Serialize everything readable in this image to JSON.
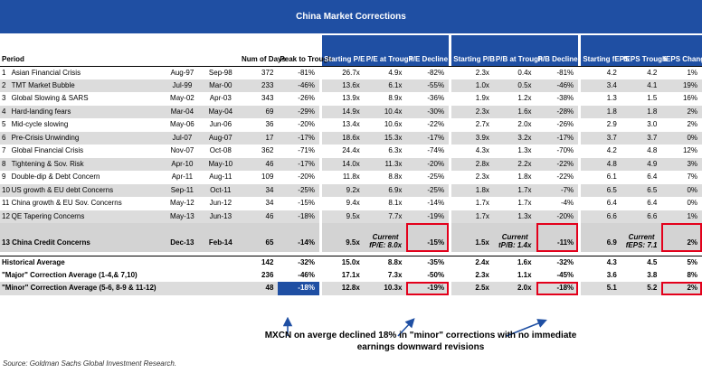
{
  "title": "China Market Corrections",
  "headers": {
    "period": "Period",
    "days": "Num of Days",
    "peak": "Peak to Trough",
    "spe": "Starting P/E",
    "pet": "P/E at Trough",
    "ped": "P/E Decline",
    "spb": "Starting P/B",
    "pbt": "P/B at Trough",
    "pbd": "P/B Decline",
    "seps": "Starting fEPS",
    "teps": "fEPS Trough",
    "ceps": "fEPS Changes"
  },
  "rows": [
    {
      "n": "1",
      "name": "Asian Financial Crisis",
      "s": "Aug-97",
      "e": "Sep-98",
      "days": "372",
      "peak": "-81%",
      "spe": "26.7x",
      "pet": "4.9x",
      "ped": "-82%",
      "spb": "2.3x",
      "pbt": "0.4x",
      "pbd": "-81%",
      "seps": "4.2",
      "teps": "4.2",
      "ceps": "1%"
    },
    {
      "n": "2",
      "name": "TMT Market Bubble",
      "s": "Jul-99",
      "e": "Mar-00",
      "days": "233",
      "peak": "-46%",
      "spe": "13.6x",
      "pet": "6.1x",
      "ped": "-55%",
      "spb": "1.0x",
      "pbt": "0.5x",
      "pbd": "-46%",
      "seps": "3.4",
      "teps": "4.1",
      "ceps": "19%"
    },
    {
      "n": "3",
      "name": "Global Slowing & SARS",
      "s": "May-02",
      "e": "Apr-03",
      "days": "343",
      "peak": "-26%",
      "spe": "13.9x",
      "pet": "8.9x",
      "ped": "-36%",
      "spb": "1.9x",
      "pbt": "1.2x",
      "pbd": "-38%",
      "seps": "1.3",
      "teps": "1.5",
      "ceps": "16%"
    },
    {
      "n": "4",
      "name": "Hard-landing fears",
      "s": "Mar-04",
      "e": "May-04",
      "days": "69",
      "peak": "-29%",
      "spe": "14.9x",
      "pet": "10.4x",
      "ped": "-30%",
      "spb": "2.3x",
      "pbt": "1.6x",
      "pbd": "-28%",
      "seps": "1.8",
      "teps": "1.8",
      "ceps": "2%"
    },
    {
      "n": "5",
      "name": "Mid-cycle slowing",
      "s": "May-06",
      "e": "Jun-06",
      "days": "36",
      "peak": "-20%",
      "spe": "13.4x",
      "pet": "10.6x",
      "ped": "-22%",
      "spb": "2.7x",
      "pbt": "2.0x",
      "pbd": "-26%",
      "seps": "2.9",
      "teps": "3.0",
      "ceps": "2%"
    },
    {
      "n": "6",
      "name": "Pre-Crisis Unwinding",
      "s": "Jul-07",
      "e": "Aug-07",
      "days": "17",
      "peak": "-17%",
      "spe": "18.6x",
      "pet": "15.3x",
      "ped": "-17%",
      "spb": "3.9x",
      "pbt": "3.2x",
      "pbd": "-17%",
      "seps": "3.7",
      "teps": "3.7",
      "ceps": "0%"
    },
    {
      "n": "7",
      "name": "Global Financial Crisis",
      "s": "Nov-07",
      "e": "Oct-08",
      "days": "362",
      "peak": "-71%",
      "spe": "24.4x",
      "pet": "6.3x",
      "ped": "-74%",
      "spb": "4.3x",
      "pbt": "1.3x",
      "pbd": "-70%",
      "seps": "4.2",
      "teps": "4.8",
      "ceps": "12%"
    },
    {
      "n": "8",
      "name": "Tightening & Sov. Risk",
      "s": "Apr-10",
      "e": "May-10",
      "days": "46",
      "peak": "-17%",
      "spe": "14.0x",
      "pet": "11.3x",
      "ped": "-20%",
      "spb": "2.8x",
      "pbt": "2.2x",
      "pbd": "-22%",
      "seps": "4.8",
      "teps": "4.9",
      "ceps": "3%"
    },
    {
      "n": "9",
      "name": "Double-dip & Debt Concern",
      "s": "Apr-11",
      "e": "Aug-11",
      "days": "109",
      "peak": "-20%",
      "spe": "11.8x",
      "pet": "8.8x",
      "ped": "-25%",
      "spb": "2.3x",
      "pbt": "1.8x",
      "pbd": "-22%",
      "seps": "6.1",
      "teps": "6.4",
      "ceps": "7%"
    },
    {
      "n": "10",
      "name": "US growth & EU debt Concerns",
      "s": "Sep-11",
      "e": "Oct-11",
      "days": "34",
      "peak": "-25%",
      "spe": "9.2x",
      "pet": "6.9x",
      "ped": "-25%",
      "spb": "1.8x",
      "pbt": "1.7x",
      "pbd": "-7%",
      "seps": "6.5",
      "teps": "6.5",
      "ceps": "0%"
    },
    {
      "n": "11",
      "name": "China growth & EU Sov. Concerns",
      "s": "May-12",
      "e": "Jun-12",
      "days": "34",
      "peak": "-15%",
      "spe": "9.4x",
      "pet": "8.1x",
      "ped": "-14%",
      "spb": "1.7x",
      "pbt": "1.7x",
      "pbd": "-4%",
      "seps": "6.4",
      "teps": "6.4",
      "ceps": "0%"
    },
    {
      "n": "12",
      "name": "QE Tapering Concerns",
      "s": "May-13",
      "e": "Jun-13",
      "days": "46",
      "peak": "-18%",
      "spe": "9.5x",
      "pet": "7.7x",
      "ped": "-19%",
      "spb": "1.7x",
      "pbt": "1.3x",
      "pbd": "-20%",
      "seps": "6.6",
      "teps": "6.6",
      "ceps": "1%"
    }
  ],
  "credit": {
    "n": "13",
    "name": "China Credit Concerns",
    "s": "Dec-13",
    "e": "Feb-14",
    "days": "65",
    "peak": "-14%",
    "spe": "9.5x",
    "pe_cur_label": "Current",
    "pe_cur": "fP/E: 8.0x",
    "ped": "-15%",
    "spb": "1.5x",
    "pb_cur_label": "Current",
    "pb_cur": "tP/B: 1.4x",
    "pbd": "-11%",
    "seps": "6.9",
    "eps_cur_label": "Current",
    "eps_cur": "fEPS: 7.1",
    "ceps": "2%"
  },
  "hist": {
    "name": "Historical Average",
    "days": "142",
    "peak": "-32%",
    "spe": "15.0x",
    "pet": "8.8x",
    "ped": "-35%",
    "spb": "2.4x",
    "pbt": "1.6x",
    "pbd": "-32%",
    "seps": "4.3",
    "teps": "4.5",
    "ceps": "5%"
  },
  "major": {
    "name": "\"Major\" Correction Average (1-4,& 7,10)",
    "days": "236",
    "peak": "-46%",
    "spe": "17.1x",
    "pet": "7.3x",
    "ped": "-50%",
    "spb": "2.3x",
    "pbt": "1.1x",
    "pbd": "-45%",
    "seps": "3.6",
    "teps": "3.8",
    "ceps": "8%"
  },
  "minor": {
    "name": "\"Minor\" Correction Average (5-6, 8-9 & 11-12)",
    "days": "48",
    "peak": "-18%",
    "spe": "12.8x",
    "pet": "10.3x",
    "ped": "-19%",
    "spb": "2.5x",
    "pbt": "2.0x",
    "pbd": "-18%",
    "seps": "5.1",
    "teps": "5.2",
    "ceps": "2%"
  },
  "annotation": "MXCN on averge declined 18% in \"minor\" corrections with no immediate earnings downward revisions",
  "source": "Source: Goldman Sachs Global Investment Research.",
  "colors": {
    "header_blue": "#1f4fa3",
    "highlight_red": "#e3001b",
    "shade_gray": "#dcdcdc"
  }
}
